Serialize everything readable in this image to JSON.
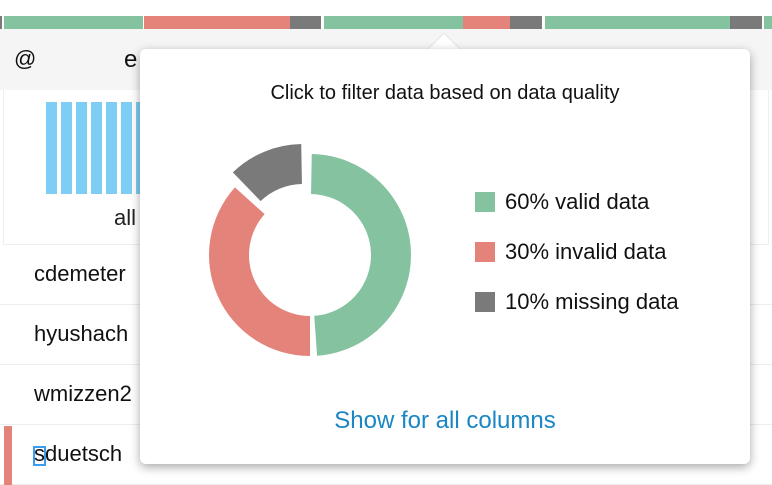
{
  "colors": {
    "valid": "#84c2a0",
    "invalid": "#e4837a",
    "missing": "#7a7a7a",
    "link": "#1a86c4",
    "histogram": "#7ecdf4"
  },
  "quality_bar": [
    {
      "type": "missing",
      "from": 0,
      "to": 2
    },
    {
      "type": "valid",
      "from": 4,
      "to": 143
    },
    {
      "type": "invalid",
      "from": 144,
      "to": 290
    },
    {
      "type": "missing",
      "from": 290,
      "to": 321
    },
    {
      "type": "valid",
      "from": 324,
      "to": 463
    },
    {
      "type": "invalid",
      "from": 463,
      "to": 510
    },
    {
      "type": "missing",
      "from": 510,
      "to": 542
    },
    {
      "type": "valid",
      "from": 545,
      "to": 730
    },
    {
      "type": "missing",
      "from": 730,
      "to": 762
    },
    {
      "type": "valid",
      "from": 764,
      "to": 772
    }
  ],
  "header": {
    "type_icon": "@",
    "column_name": "e"
  },
  "histogram": {
    "label": "all"
  },
  "rows": [
    "cdemeter",
    "hyushach",
    "wmizzen2",
    "sduetsch"
  ],
  "popover": {
    "title": "Click to filter data based on data quality",
    "legend": [
      {
        "type": "valid",
        "label": "60% valid data",
        "percent": 60
      },
      {
        "type": "invalid",
        "label": "30% invalid data",
        "percent": 30
      },
      {
        "type": "missing",
        "label": "10% missing data",
        "percent": 10
      }
    ],
    "link": "Show for all columns"
  }
}
